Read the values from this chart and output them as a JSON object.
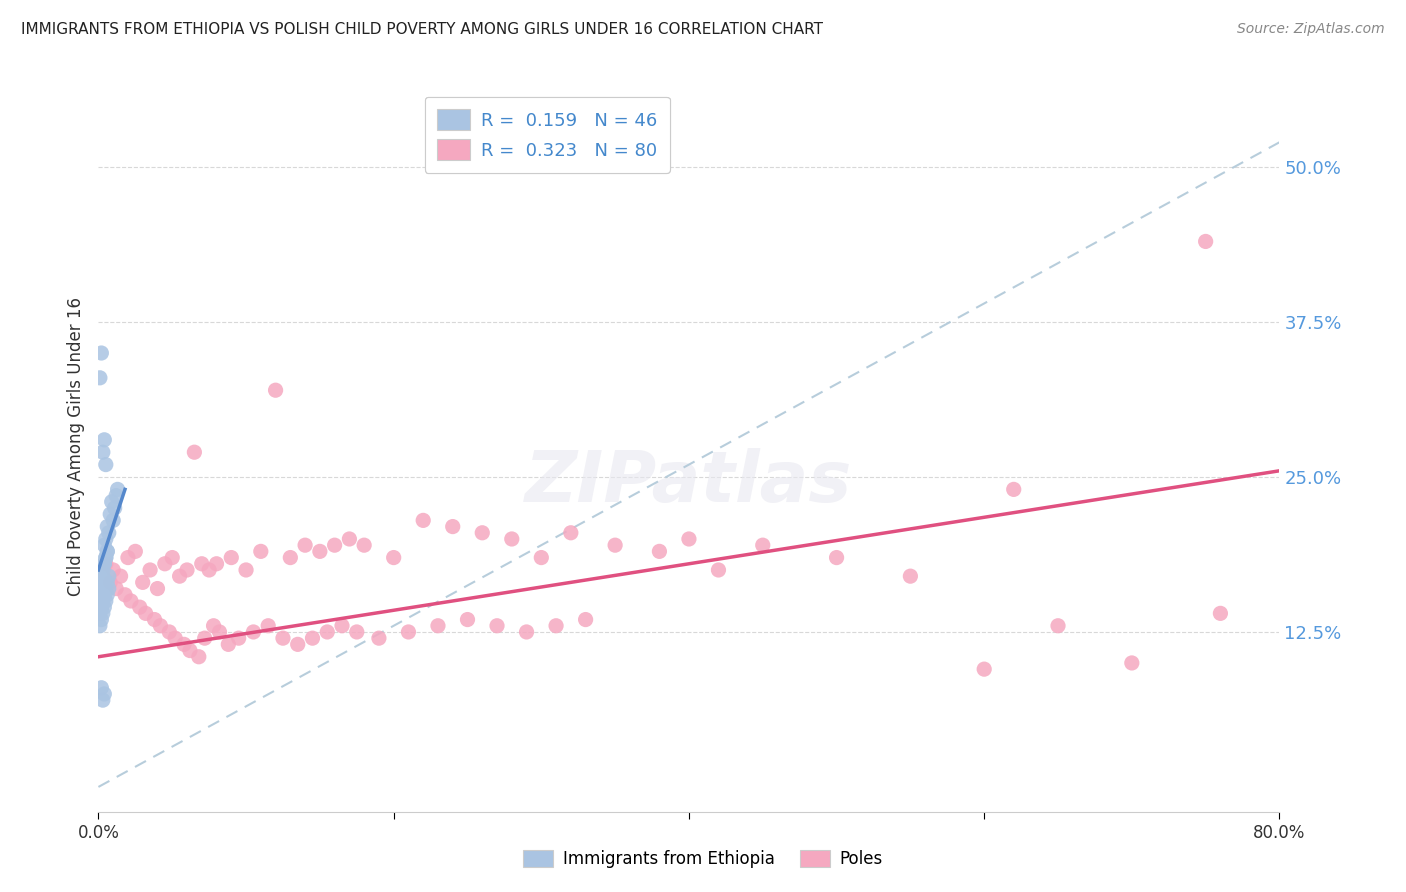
{
  "title": "IMMIGRANTS FROM ETHIOPIA VS POLISH CHILD POVERTY AMONG GIRLS UNDER 16 CORRELATION CHART",
  "source": "Source: ZipAtlas.com",
  "ylabel": "Child Poverty Among Girls Under 16",
  "ytick_labels": [
    "12.5%",
    "25.0%",
    "37.5%",
    "50.0%"
  ],
  "ytick_values": [
    0.125,
    0.25,
    0.375,
    0.5
  ],
  "xlim": [
    0.0,
    0.8
  ],
  "ylim": [
    -0.02,
    0.57
  ],
  "color_ethiopia": "#aac4e2",
  "color_poles": "#f5a8c0",
  "line_color_ethiopia": "#5588cc",
  "line_color_poles": "#e05080",
  "dashed_line_color": "#b0c8d8",
  "background_color": "#ffffff",
  "grid_color": "#d8d8d8",
  "eth_line_x0": 0.0,
  "eth_line_x1": 0.018,
  "eth_line_y0": 0.175,
  "eth_line_y1": 0.24,
  "poles_line_x0": 0.0,
  "poles_line_x1": 0.8,
  "poles_line_y0": 0.105,
  "poles_line_y1": 0.255,
  "dash_line_x0": 0.0,
  "dash_line_x1": 0.8,
  "dash_line_y0": 0.0,
  "dash_line_y1": 0.52,
  "eth_scatter_x": [
    0.001,
    0.002,
    0.002,
    0.003,
    0.003,
    0.004,
    0.004,
    0.005,
    0.005,
    0.006,
    0.006,
    0.007,
    0.008,
    0.009,
    0.01,
    0.011,
    0.012,
    0.013,
    0.001,
    0.002,
    0.003,
    0.004,
    0.005,
    0.006,
    0.007,
    0.001,
    0.002,
    0.003,
    0.004,
    0.005,
    0.001,
    0.002,
    0.003,
    0.004,
    0.005,
    0.006,
    0.007,
    0.002,
    0.003,
    0.004,
    0.001,
    0.002,
    0.003,
    0.004,
    0.005,
    0.006
  ],
  "eth_scatter_y": [
    0.155,
    0.16,
    0.175,
    0.165,
    0.17,
    0.18,
    0.195,
    0.185,
    0.2,
    0.19,
    0.21,
    0.205,
    0.22,
    0.23,
    0.215,
    0.225,
    0.235,
    0.24,
    0.14,
    0.145,
    0.15,
    0.155,
    0.16,
    0.165,
    0.17,
    0.33,
    0.35,
    0.27,
    0.28,
    0.26,
    0.13,
    0.135,
    0.14,
    0.145,
    0.15,
    0.155,
    0.16,
    0.08,
    0.07,
    0.075,
    0.165,
    0.17,
    0.175,
    0.18,
    0.185,
    0.19
  ],
  "poles_scatter_x": [
    0.005,
    0.01,
    0.015,
    0.02,
    0.025,
    0.03,
    0.035,
    0.04,
    0.045,
    0.05,
    0.055,
    0.06,
    0.065,
    0.07,
    0.075,
    0.08,
    0.09,
    0.1,
    0.11,
    0.12,
    0.13,
    0.14,
    0.15,
    0.16,
    0.17,
    0.18,
    0.2,
    0.22,
    0.24,
    0.26,
    0.28,
    0.3,
    0.32,
    0.35,
    0.38,
    0.4,
    0.42,
    0.45,
    0.5,
    0.55,
    0.6,
    0.62,
    0.65,
    0.7,
    0.75,
    0.76,
    0.008,
    0.012,
    0.018,
    0.022,
    0.028,
    0.032,
    0.038,
    0.042,
    0.048,
    0.052,
    0.058,
    0.062,
    0.068,
    0.072,
    0.078,
    0.082,
    0.088,
    0.095,
    0.105,
    0.115,
    0.125,
    0.135,
    0.145,
    0.155,
    0.165,
    0.175,
    0.19,
    0.21,
    0.23,
    0.25,
    0.27,
    0.29,
    0.31,
    0.33
  ],
  "poles_scatter_y": [
    0.18,
    0.175,
    0.17,
    0.185,
    0.19,
    0.165,
    0.175,
    0.16,
    0.18,
    0.185,
    0.17,
    0.175,
    0.27,
    0.18,
    0.175,
    0.18,
    0.185,
    0.175,
    0.19,
    0.32,
    0.185,
    0.195,
    0.19,
    0.195,
    0.2,
    0.195,
    0.185,
    0.215,
    0.21,
    0.205,
    0.2,
    0.185,
    0.205,
    0.195,
    0.19,
    0.2,
    0.175,
    0.195,
    0.185,
    0.17,
    0.095,
    0.24,
    0.13,
    0.1,
    0.44,
    0.14,
    0.165,
    0.16,
    0.155,
    0.15,
    0.145,
    0.14,
    0.135,
    0.13,
    0.125,
    0.12,
    0.115,
    0.11,
    0.105,
    0.12,
    0.13,
    0.125,
    0.115,
    0.12,
    0.125,
    0.13,
    0.12,
    0.115,
    0.12,
    0.125,
    0.13,
    0.125,
    0.12,
    0.125,
    0.13,
    0.135,
    0.13,
    0.125,
    0.13,
    0.135
  ]
}
